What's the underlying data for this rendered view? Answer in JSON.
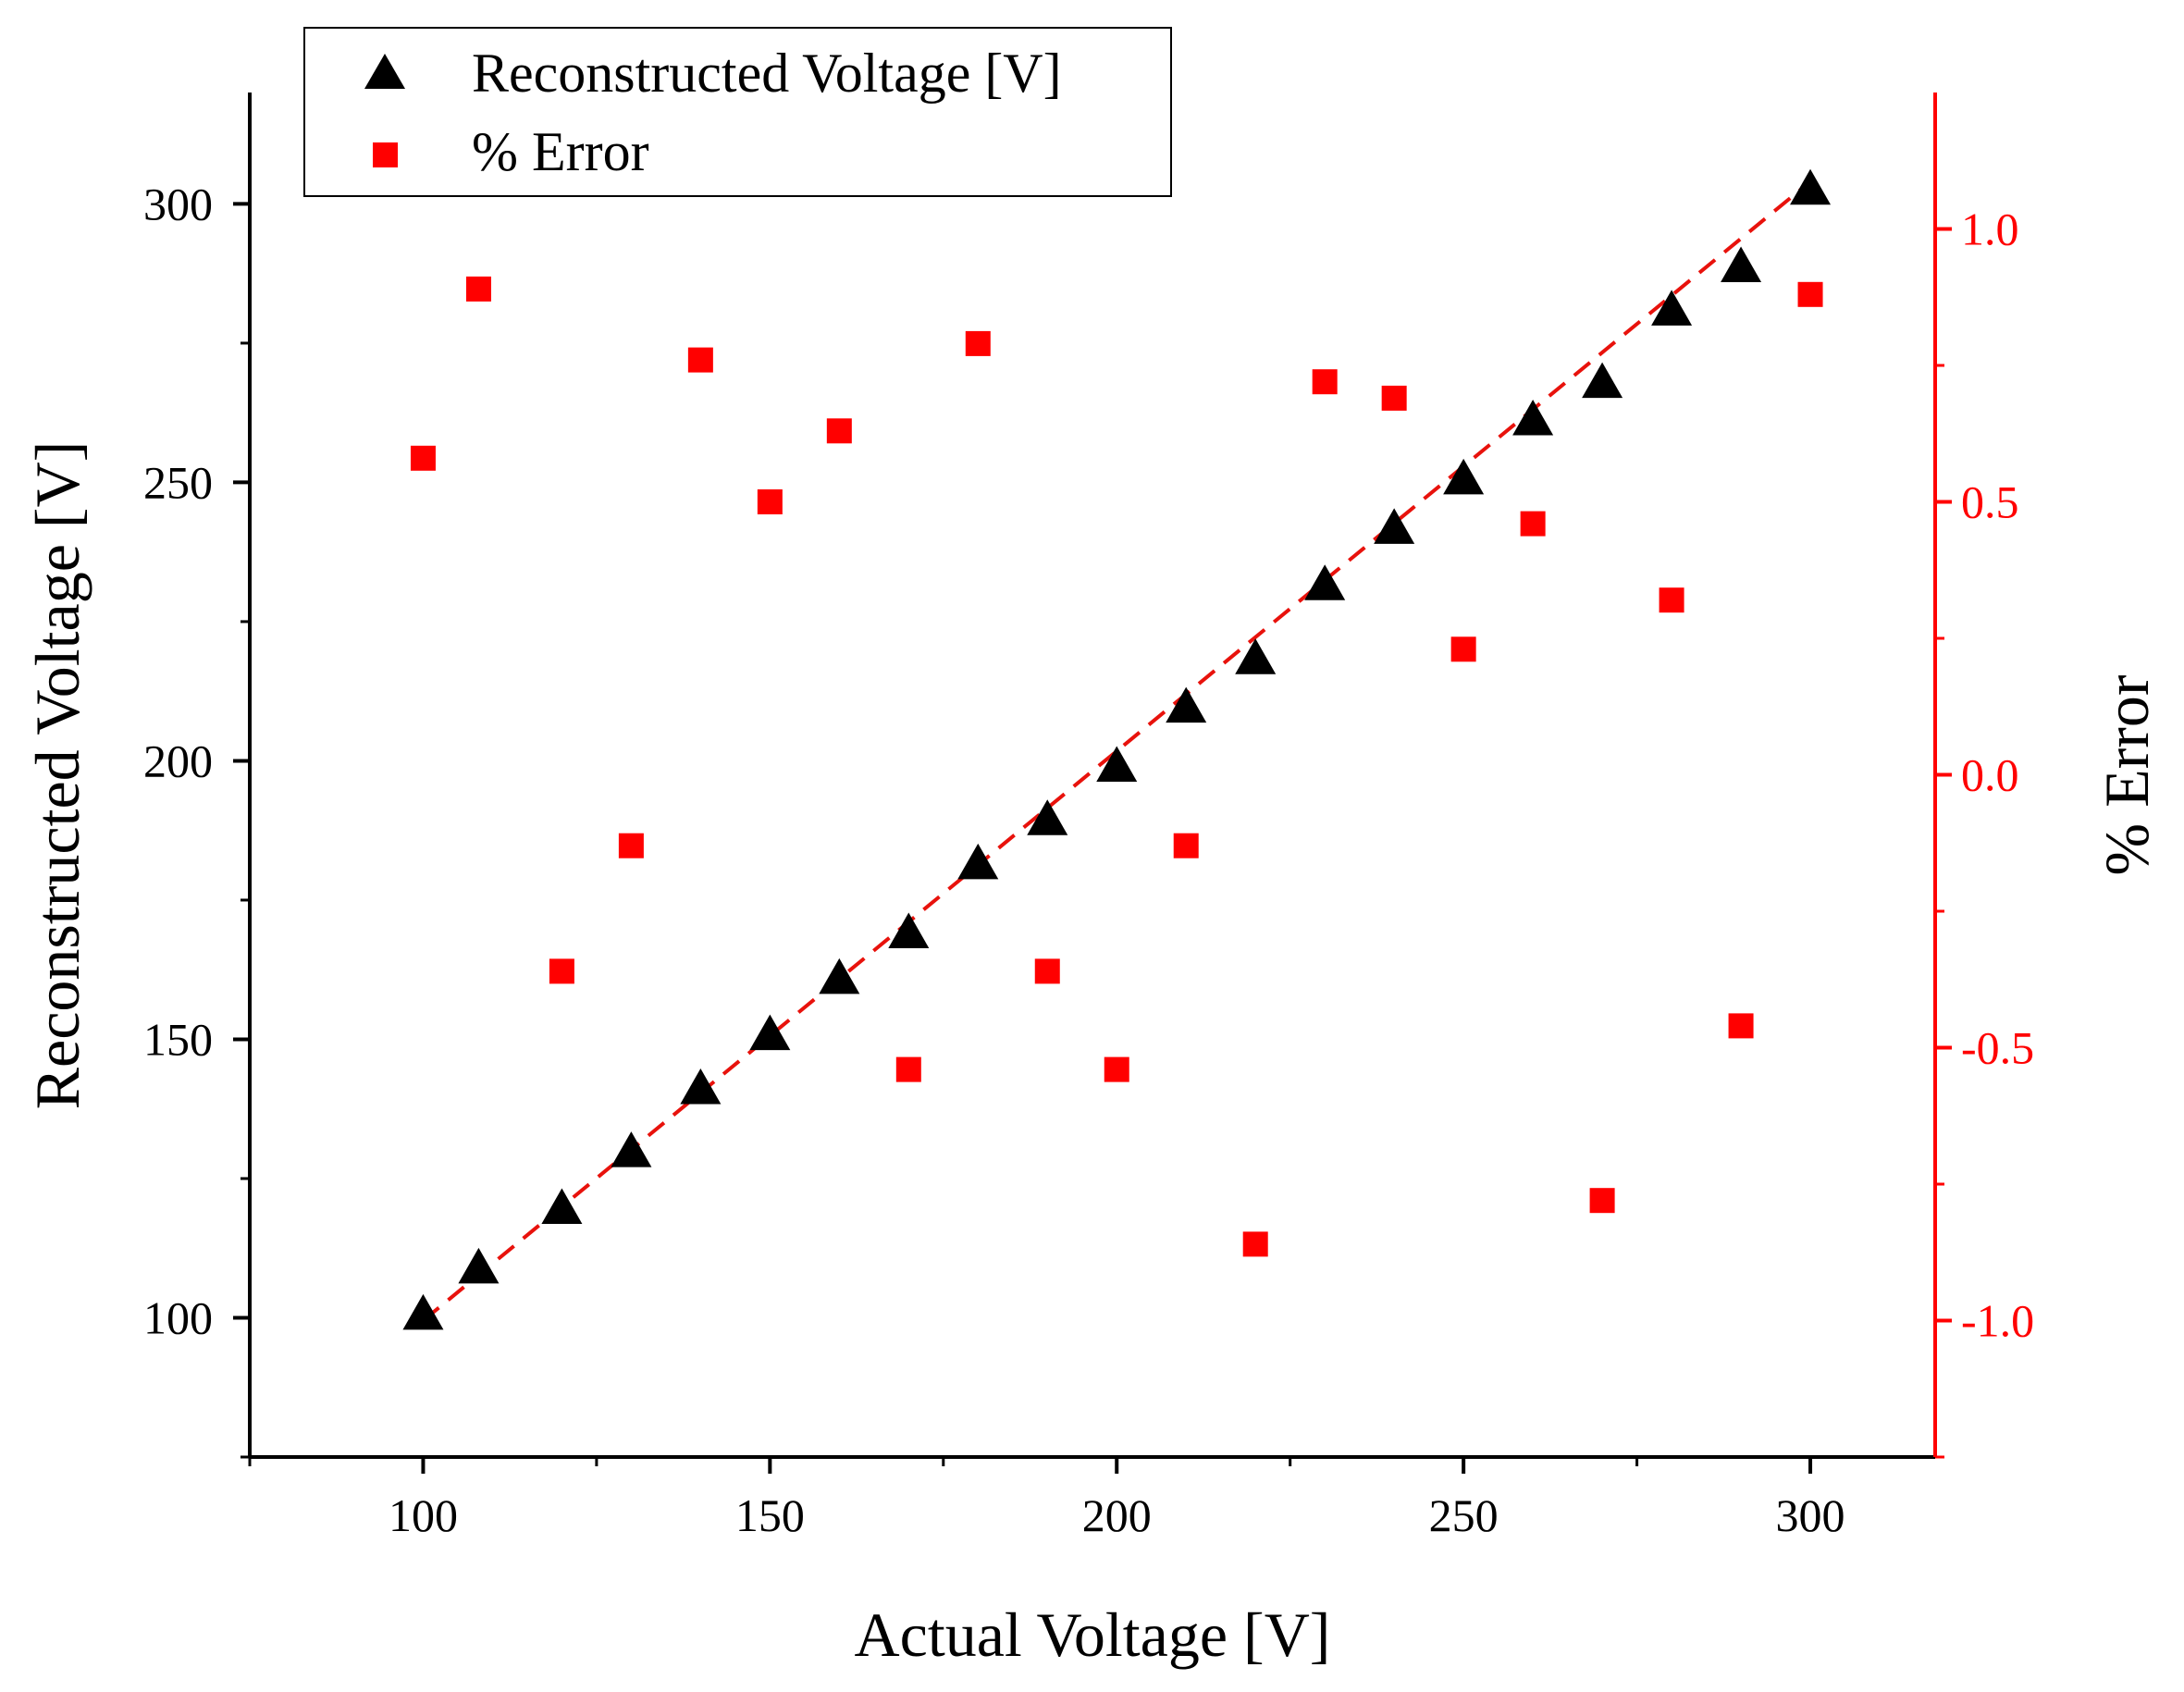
{
  "chart_data": {
    "type": "scatter",
    "title": "",
    "xlabel": "Actual Voltage [V]",
    "ylabel": "Reconstructed Voltage [V]",
    "y2label": "% Error",
    "xlim": [
      75,
      318
    ],
    "ylim": [
      75,
      320
    ],
    "y2lim": [
      -1.25,
      1.25
    ],
    "xticks": [
      100,
      150,
      200,
      250,
      300
    ],
    "xtick_labels": [
      "100",
      "150",
      "200",
      "250",
      "300"
    ],
    "yticks": [
      100,
      150,
      200,
      250,
      300
    ],
    "ytick_labels": [
      "100",
      "150",
      "200",
      "250",
      "300"
    ],
    "y2ticks": [
      -1.0,
      -0.5,
      0.0,
      0.5,
      1.0
    ],
    "y2tick_labels": [
      "-1.0",
      "-0.5",
      "0.0",
      "0.5",
      "1.0"
    ],
    "legend_position": "top-left",
    "fit_line": {
      "style": "dashed",
      "color": "#e8120c",
      "x": [
        100,
        300
      ],
      "y": [
        99.5,
        304
      ]
    },
    "series": [
      {
        "name": "Reconstructed Voltage [V]",
        "axis": "left",
        "marker": "triangle",
        "color": "#000000",
        "x": [
          100,
          108,
          120,
          130,
          140,
          150,
          160,
          170,
          180,
          190,
          200,
          210,
          220,
          230,
          240,
          250,
          260,
          270,
          280,
          290,
          300
        ],
        "y": [
          100.6,
          108.9,
          119.6,
          129.8,
          141.1,
          150.8,
          160.9,
          169.1,
          181.5,
          189.4,
          199.0,
          209.6,
          218.3,
          231.6,
          241.7,
          250.6,
          261.2,
          267.9,
          280.9,
          288.7,
          302.6
        ]
      },
      {
        "name": "% Error",
        "axis": "right",
        "marker": "square",
        "color": "#ff0000",
        "x": [
          100,
          108,
          120,
          130,
          140,
          150,
          160,
          170,
          180,
          190,
          200,
          210,
          220,
          230,
          240,
          250,
          260,
          270,
          280,
          290,
          300
        ],
        "y": [
          0.58,
          0.89,
          -0.36,
          -0.13,
          0.76,
          0.5,
          0.63,
          -0.54,
          0.79,
          -0.36,
          -0.54,
          -0.13,
          -0.86,
          0.72,
          0.69,
          0.23,
          0.46,
          -0.78,
          0.32,
          -0.46,
          0.88
        ]
      }
    ]
  }
}
